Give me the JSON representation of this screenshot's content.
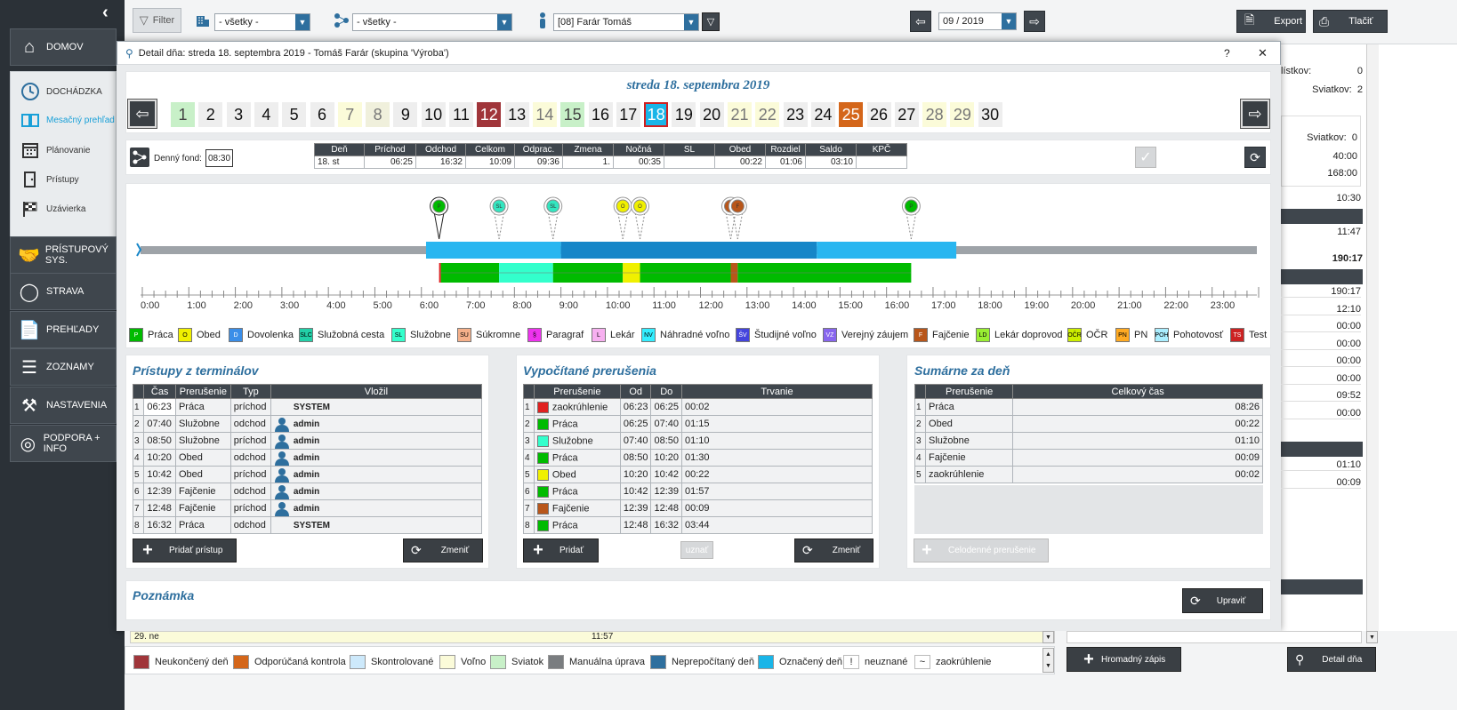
{
  "sidebar": {
    "nav": [
      {
        "label": "DOMOV",
        "icon": "home-icon"
      },
      {
        "label": "PRÍSTUPOVÝ SYS.",
        "icon": "handshake-icon"
      },
      {
        "label": "STRAVA",
        "icon": "plate-icon"
      },
      {
        "label": "PREHĽADY",
        "icon": "report-icon"
      },
      {
        "label": "ZOZNAMY",
        "icon": "list-icon"
      },
      {
        "label": "NASTAVENIA",
        "icon": "tools-icon"
      },
      {
        "label": "PODPORA + INFO",
        "icon": "lifebuoy-icon"
      }
    ],
    "dochadzka": {
      "title": "DOCHÁDZKA",
      "items": [
        {
          "label": "Mesačný prehľad",
          "active": true
        },
        {
          "label": "Plánovanie"
        },
        {
          "label": "Prístupy"
        },
        {
          "label": "Uzávierka"
        }
      ]
    }
  },
  "toolbar": {
    "filter": "Filter",
    "select1": "- všetky -",
    "select2": "- všetky -",
    "employee": "[08] Farár Tomáš",
    "month": "09 / 2019",
    "export": "Export",
    "print": "Tlačiť"
  },
  "bg_right": {
    "listkov_label": "lístkov:",
    "listkov_val": "0",
    "sviatkov_label": "Sviatkov:",
    "sviatkov_val": "2",
    "sviatkov2_label": "Sviatkov:",
    "sviatkov2_val": "0",
    "v1": "40:00",
    "v2": "168:00",
    "v3": "10:30",
    "v4": "11:47",
    "v5": "190:17",
    "col": [
      "190:17",
      "12:10",
      "00:00",
      "00:00",
      "00:00",
      "00:00",
      "09:52",
      "00:00"
    ],
    "col2": [
      "01:10",
      "00:09"
    ]
  },
  "modal": {
    "title": "Detail dňa: streda 18. septembra 2019 -  Tomáš Farár  (skupina 'Výroba')",
    "help": "?",
    "close": "✕",
    "date_heading": "streda 18. septembra 2019",
    "selected_day": 18,
    "days": [
      {
        "n": "1",
        "bg": "#c8f0c8",
        "c": "#444"
      },
      {
        "n": "2"
      },
      {
        "n": "3"
      },
      {
        "n": "4"
      },
      {
        "n": "5"
      },
      {
        "n": "6"
      },
      {
        "n": "7",
        "bg": "#fbfbd9",
        "c": "#777"
      },
      {
        "n": "8",
        "bg": "#f0f0dc",
        "c": "#777"
      },
      {
        "n": "9"
      },
      {
        "n": "10"
      },
      {
        "n": "11"
      },
      {
        "n": "12",
        "bg": "#a0353a",
        "c": "#fff"
      },
      {
        "n": "13"
      },
      {
        "n": "14",
        "bg": "#fbfbd9",
        "c": "#777"
      },
      {
        "n": "15",
        "bg": "#c8f0c8",
        "c": "#444"
      },
      {
        "n": "16"
      },
      {
        "n": "17"
      },
      {
        "n": "18",
        "bg": "#19b5e8",
        "c": "#fff"
      },
      {
        "n": "19"
      },
      {
        "n": "20"
      },
      {
        "n": "21",
        "bg": "#fbfbd9",
        "c": "#777"
      },
      {
        "n": "22",
        "bg": "#fbfbd9",
        "c": "#777"
      },
      {
        "n": "23"
      },
      {
        "n": "24"
      },
      {
        "n": "25",
        "bg": "#d4661a",
        "c": "#fff"
      },
      {
        "n": "26"
      },
      {
        "n": "27"
      },
      {
        "n": "28",
        "bg": "#fbfbd9",
        "c": "#777"
      },
      {
        "n": "29",
        "bg": "#fbfbd9",
        "c": "#777"
      },
      {
        "n": "30"
      }
    ],
    "fond_label": "Denný fond:",
    "fond_value": "08:30",
    "summary_headers": [
      "Deň",
      "Príchod",
      "Odchod",
      "Celkom",
      "Odprac.",
      "Zmena",
      "Nočná",
      "SL",
      "Obed",
      "Rozdiel",
      "Saldo",
      "KPČ"
    ],
    "summary_values": [
      "18. st",
      "06:25",
      "16:32",
      "10:09",
      "09:36",
      "1.",
      "00:35",
      "",
      "00:22",
      "01:06",
      "03:10",
      ""
    ],
    "timeline": {
      "start_hour": 0,
      "end_hour": 24,
      "hours": [
        "0:00",
        "1:00",
        "2:00",
        "3:00",
        "4:00",
        "5:00",
        "6:00",
        "7:00",
        "8:00",
        "9:00",
        "10:00",
        "11:00",
        "12:00",
        "13:00",
        "14:00",
        "15:00",
        "16:00",
        "17:00",
        "18:00",
        "19:00",
        "20:00",
        "21:00",
        "22:00",
        "23:00"
      ],
      "blue_bars": [
        {
          "from": 6.1,
          "to": 9.0,
          "color": "#29b6f0"
        },
        {
          "from": 9.0,
          "to": 14.5,
          "color": "#1686c8"
        },
        {
          "from": 14.5,
          "to": 17.5,
          "color": "#29b6f0"
        }
      ],
      "activity": [
        {
          "from": 6.38,
          "to": 6.42,
          "color": "#e02020"
        },
        {
          "from": 6.42,
          "to": 7.67,
          "color": "#00bb00"
        },
        {
          "from": 7.67,
          "to": 8.83,
          "color": "#33ffcc"
        },
        {
          "from": 8.83,
          "to": 10.33,
          "color": "#00bb00"
        },
        {
          "from": 10.33,
          "to": 10.7,
          "color": "#f0f000"
        },
        {
          "from": 10.7,
          "to": 12.65,
          "color": "#00bb00"
        },
        {
          "from": 12.65,
          "to": 12.8,
          "color": "#b8561a"
        },
        {
          "from": 12.8,
          "to": 16.53,
          "color": "#00bb00"
        }
      ],
      "pins": [
        {
          "at": 6.38,
          "label": "P",
          "color": "#00bb00",
          "dark": true
        },
        {
          "at": 7.67,
          "label": "SL",
          "color": "#33e6c0"
        },
        {
          "at": 8.83,
          "label": "SL",
          "color": "#33e6c0"
        },
        {
          "at": 10.33,
          "label": "O",
          "color": "#f0f000"
        },
        {
          "at": 10.7,
          "label": "O",
          "color": "#f0f000"
        },
        {
          "at": 12.65,
          "label": "F",
          "color": "#b8561a"
        },
        {
          "at": 12.8,
          "label": "F",
          "color": "#b8561a"
        },
        {
          "at": 16.53,
          "label": "P",
          "color": "#00bb00"
        }
      ]
    },
    "legend": [
      {
        "code": "P",
        "label": "Práca",
        "color": "#00bb00",
        "tc": "#fff"
      },
      {
        "code": "O",
        "label": "Obed",
        "color": "#f0f000",
        "tc": "#000"
      },
      {
        "code": "D",
        "label": "Dovolenka",
        "color": "#3a8ee8",
        "tc": "#fff"
      },
      {
        "code": "SLC",
        "label": "Služobná cesta",
        "color": "#22d0a8",
        "tc": "#000"
      },
      {
        "code": "SL",
        "label": "Služobne",
        "color": "#33ffcc",
        "tc": "#000"
      },
      {
        "code": "SU",
        "label": "Súkromne",
        "color": "#f5b08a",
        "tc": "#000"
      },
      {
        "code": "§",
        "label": "Paragraf",
        "color": "#ee33ee",
        "tc": "#000"
      },
      {
        "code": "L",
        "label": "Lekár",
        "color": "#f7b0f0",
        "tc": "#000"
      },
      {
        "code": "NV",
        "label": "Náhradné voľno",
        "color": "#33eeff",
        "tc": "#000"
      },
      {
        "code": "ŠV",
        "label": "Študijné voľno",
        "color": "#4444dd",
        "tc": "#fff"
      },
      {
        "code": "VZ",
        "label": "Verejný záujem",
        "color": "#8866ee",
        "tc": "#fff"
      },
      {
        "code": "F",
        "label": "Fajčenie",
        "color": "#b8561a",
        "tc": "#fff"
      },
      {
        "code": "LD",
        "label": "Lekár doprovod",
        "color": "#99ee33",
        "tc": "#000"
      },
      {
        "code": "OČR",
        "label": "OČR",
        "color": "#ccee00",
        "tc": "#000"
      },
      {
        "code": "PN",
        "label": "PN",
        "color": "#ffaa22",
        "tc": "#000"
      },
      {
        "code": "POH",
        "label": "Pohotovosť",
        "color": "#aaeeff",
        "tc": "#000"
      },
      {
        "code": "TS",
        "label": "Test",
        "color": "#cc2222",
        "tc": "#fff"
      }
    ],
    "pristupy": {
      "title": "Prístupy z terminálov",
      "headers": [
        "Čas",
        "Prerušenie",
        "Typ",
        "Vložil"
      ],
      "rows": [
        {
          "n": "1",
          "cas": "06:23",
          "prer": "Práca",
          "typ": "príchod",
          "vlozil": "SYSTEM",
          "user": false
        },
        {
          "n": "2",
          "cas": "07:40",
          "prer": "Služobne",
          "typ": "odchod",
          "vlozil": "admin",
          "user": true
        },
        {
          "n": "3",
          "cas": "08:50",
          "prer": "Služobne",
          "typ": "príchod",
          "vlozil": "admin",
          "user": true
        },
        {
          "n": "4",
          "cas": "10:20",
          "prer": "Obed",
          "typ": "odchod",
          "vlozil": "admin",
          "user": true
        },
        {
          "n": "5",
          "cas": "10:42",
          "prer": "Obed",
          "typ": "príchod",
          "vlozil": "admin",
          "user": true
        },
        {
          "n": "6",
          "cas": "12:39",
          "prer": "Fajčenie",
          "typ": "odchod",
          "vlozil": "admin",
          "user": true
        },
        {
          "n": "7",
          "cas": "12:48",
          "prer": "Fajčenie",
          "typ": "príchod",
          "vlozil": "admin",
          "user": true
        },
        {
          "n": "8",
          "cas": "16:32",
          "prer": "Práca",
          "typ": "odchod",
          "vlozil": "SYSTEM",
          "user": false
        }
      ],
      "add_btn": "Pridať prístup",
      "change_btn": "Zmeniť"
    },
    "vypocitane": {
      "title": "Vypočítané prerušenia",
      "headers": [
        "Prerušenie",
        "Od",
        "Do",
        "Trvanie"
      ],
      "rows": [
        {
          "n": "1",
          "color": "#e02020",
          "prer": "zaokrúhlenie",
          "od": "06:23",
          "do": "06:25",
          "tr": "00:02"
        },
        {
          "n": "2",
          "color": "#00bb00",
          "prer": "Práca",
          "od": "06:25",
          "do": "07:40",
          "tr": "01:15"
        },
        {
          "n": "3",
          "color": "#33ffcc",
          "prer": "Služobne",
          "od": "07:40",
          "do": "08:50",
          "tr": "01:10"
        },
        {
          "n": "4",
          "color": "#00bb00",
          "prer": "Práca",
          "od": "08:50",
          "do": "10:20",
          "tr": "01:30"
        },
        {
          "n": "5",
          "color": "#f0f000",
          "prer": "Obed",
          "od": "10:20",
          "do": "10:42",
          "tr": "00:22"
        },
        {
          "n": "6",
          "color": "#00bb00",
          "prer": "Práca",
          "od": "10:42",
          "do": "12:39",
          "tr": "01:57"
        },
        {
          "n": "7",
          "color": "#b8561a",
          "prer": "Fajčenie",
          "od": "12:39",
          "do": "12:48",
          "tr": "00:09"
        },
        {
          "n": "8",
          "color": "#00bb00",
          "prer": "Práca",
          "od": "12:48",
          "do": "16:32",
          "tr": "03:44"
        }
      ],
      "add_btn": "Pridať",
      "uznat_btn": "uznať",
      "change_btn": "Zmeniť"
    },
    "sumarne": {
      "title": "Sumárne za deň",
      "headers": [
        "Prerušenie",
        "Celkový čas"
      ],
      "rows": [
        {
          "n": "1",
          "prer": "Práca",
          "cas": "08:26"
        },
        {
          "n": "2",
          "prer": "Obed",
          "cas": "00:22"
        },
        {
          "n": "3",
          "prer": "Služobne",
          "cas": "01:10"
        },
        {
          "n": "4",
          "prer": "Fajčenie",
          "cas": "00:09"
        },
        {
          "n": "5",
          "prer": "zaokrúhlenie",
          "cas": "00:02"
        }
      ],
      "add_btn": "Celodenné prerušenie"
    },
    "poznamka": {
      "title": "Poznámka",
      "btn": "Upraviť"
    }
  },
  "bottom": {
    "row_day": "29. ne",
    "row_time": "11:57",
    "legend": [
      {
        "label": "Neukončený deň",
        "color": "#a0353a"
      },
      {
        "label": "Odporúčaná kontrola",
        "color": "#d4661a"
      },
      {
        "label": "Skontrolované",
        "color": "#cde9fb"
      },
      {
        "label": "Voľno",
        "color": "#fbfbd9"
      },
      {
        "label": "Sviatok",
        "color": "#c8f0c8"
      },
      {
        "label": "Manuálna úprava",
        "color": "#7a7d80"
      },
      {
        "label": "Neprepočítaný deň",
        "color": "#2e6f9e"
      },
      {
        "label": "Označený deň",
        "color": "#19b5e8"
      }
    ],
    "mark1_sym": "!",
    "mark1": "neuznané",
    "mark2_sym": "~",
    "mark2": "zaokrúhlenie",
    "bulk_btn": "Hromadný zápis",
    "detail_btn": "Detail dňa"
  }
}
